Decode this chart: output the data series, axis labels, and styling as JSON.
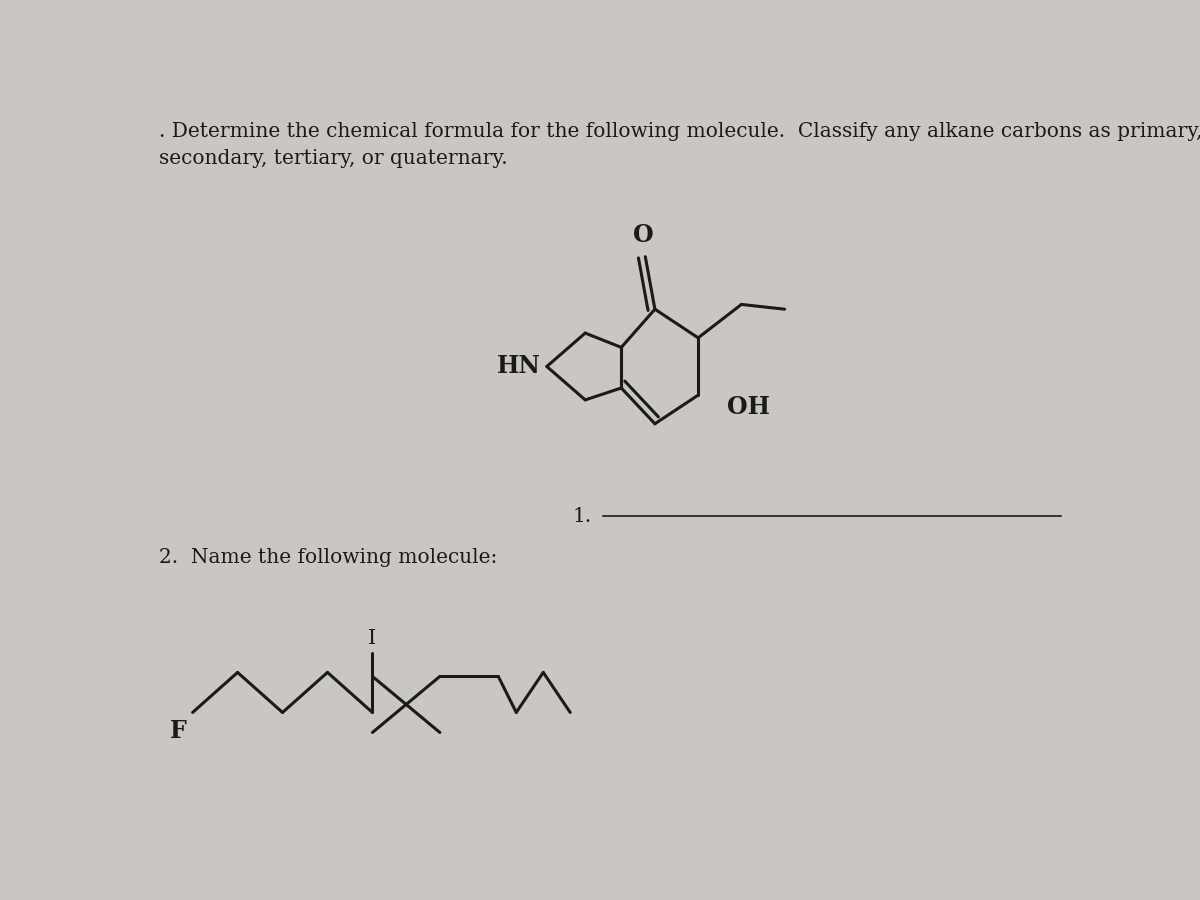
{
  "background_color": "#cac7c2",
  "text_color": "#1a1a1a",
  "title1": ". Determine the chemical formula for the following molecule.  Classify any alkane carbons as primary,",
  "title2": "secondary, tertiary, or quaternary.",
  "question2": "2.  Name the following molecule:",
  "font_size_title": 14.5,
  "font_size_atoms": 17,
  "lw_mol": 2.2
}
